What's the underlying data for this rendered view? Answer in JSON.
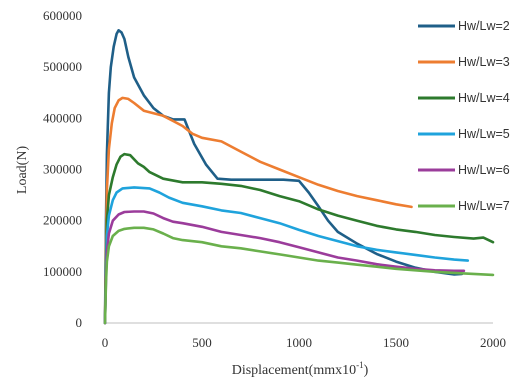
{
  "chart_data": {
    "type": "line",
    "xlabel": "Displacement(mmx10",
    "xlabel_sup": "-1",
    "xlabel_end": ")",
    "ylabel": "Load(N)",
    "xlim": [
      0,
      2000
    ],
    "ylim": [
      0,
      600000
    ],
    "x_ticks": [
      0,
      500,
      1000,
      1500,
      2000
    ],
    "y_ticks": [
      0,
      100000,
      200000,
      300000,
      400000,
      500000,
      600000
    ],
    "grid": false,
    "legend_position": "right",
    "series": [
      {
        "name": "Hw/Lw=2",
        "color": "#1f5f88",
        "points": [
          [
            0,
            0
          ],
          [
            5,
            200000
          ],
          [
            10,
            330000
          ],
          [
            20,
            450000
          ],
          [
            30,
            500000
          ],
          [
            45,
            540000
          ],
          [
            60,
            565000
          ],
          [
            70,
            572000
          ],
          [
            85,
            568000
          ],
          [
            100,
            555000
          ],
          [
            120,
            520000
          ],
          [
            150,
            480000
          ],
          [
            200,
            445000
          ],
          [
            250,
            420000
          ],
          [
            300,
            405000
          ],
          [
            350,
            398000
          ],
          [
            410,
            398000
          ],
          [
            460,
            350000
          ],
          [
            520,
            310000
          ],
          [
            580,
            282000
          ],
          [
            650,
            280000
          ],
          [
            800,
            280000
          ],
          [
            920,
            280000
          ],
          [
            1000,
            278000
          ],
          [
            1050,
            255000
          ],
          [
            1100,
            228000
          ],
          [
            1150,
            200000
          ],
          [
            1200,
            178000
          ],
          [
            1300,
            155000
          ],
          [
            1400,
            135000
          ],
          [
            1500,
            120000
          ],
          [
            1600,
            108000
          ],
          [
            1700,
            100000
          ],
          [
            1800,
            95000
          ],
          [
            1840,
            96000
          ]
        ]
      },
      {
        "name": "Hw/Lw=3",
        "color": "#ed7d31",
        "points": [
          [
            0,
            0
          ],
          [
            5,
            150000
          ],
          [
            10,
            260000
          ],
          [
            20,
            340000
          ],
          [
            35,
            390000
          ],
          [
            50,
            420000
          ],
          [
            70,
            435000
          ],
          [
            90,
            440000
          ],
          [
            120,
            438000
          ],
          [
            150,
            430000
          ],
          [
            200,
            415000
          ],
          [
            250,
            410000
          ],
          [
            300,
            405000
          ],
          [
            350,
            395000
          ],
          [
            400,
            385000
          ],
          [
            450,
            370000
          ],
          [
            500,
            362000
          ],
          [
            600,
            355000
          ],
          [
            700,
            335000
          ],
          [
            800,
            315000
          ],
          [
            900,
            300000
          ],
          [
            1000,
            285000
          ],
          [
            1100,
            270000
          ],
          [
            1200,
            258000
          ],
          [
            1300,
            248000
          ],
          [
            1400,
            240000
          ],
          [
            1500,
            232000
          ],
          [
            1580,
            227000
          ]
        ]
      },
      {
        "name": "Hw/Lw=4",
        "color": "#2d7a2d",
        "points": [
          [
            0,
            0
          ],
          [
            5,
            120000
          ],
          [
            10,
            200000
          ],
          [
            20,
            250000
          ],
          [
            40,
            285000
          ],
          [
            60,
            310000
          ],
          [
            80,
            325000
          ],
          [
            100,
            330000
          ],
          [
            130,
            328000
          ],
          [
            170,
            312000
          ],
          [
            200,
            305000
          ],
          [
            230,
            295000
          ],
          [
            300,
            282000
          ],
          [
            400,
            275000
          ],
          [
            500,
            275000
          ],
          [
            600,
            272000
          ],
          [
            700,
            268000
          ],
          [
            800,
            260000
          ],
          [
            900,
            248000
          ],
          [
            1000,
            238000
          ],
          [
            1100,
            222000
          ],
          [
            1200,
            210000
          ],
          [
            1300,
            200000
          ],
          [
            1400,
            190000
          ],
          [
            1500,
            183000
          ],
          [
            1600,
            178000
          ],
          [
            1700,
            172000
          ],
          [
            1800,
            168000
          ],
          [
            1900,
            165000
          ],
          [
            1950,
            167000
          ],
          [
            2000,
            158000
          ]
        ]
      },
      {
        "name": "Hw/Lw=5",
        "color": "#1fa3dc",
        "points": [
          [
            0,
            0
          ],
          [
            5,
            100000
          ],
          [
            10,
            170000
          ],
          [
            20,
            210000
          ],
          [
            40,
            240000
          ],
          [
            60,
            255000
          ],
          [
            90,
            263000
          ],
          [
            150,
            265000
          ],
          [
            230,
            263000
          ],
          [
            280,
            255000
          ],
          [
            330,
            245000
          ],
          [
            400,
            235000
          ],
          [
            500,
            228000
          ],
          [
            600,
            220000
          ],
          [
            700,
            215000
          ],
          [
            800,
            205000
          ],
          [
            900,
            195000
          ],
          [
            1000,
            182000
          ],
          [
            1100,
            170000
          ],
          [
            1200,
            160000
          ],
          [
            1300,
            150000
          ],
          [
            1400,
            143000
          ],
          [
            1500,
            138000
          ],
          [
            1600,
            133000
          ],
          [
            1700,
            128000
          ],
          [
            1800,
            124000
          ],
          [
            1870,
            122000
          ]
        ]
      },
      {
        "name": "Hw/Lw=6",
        "color": "#9b3c9b",
        "points": [
          [
            0,
            0
          ],
          [
            5,
            90000
          ],
          [
            10,
            140000
          ],
          [
            20,
            175000
          ],
          [
            40,
            200000
          ],
          [
            70,
            212000
          ],
          [
            100,
            217000
          ],
          [
            150,
            218000
          ],
          [
            200,
            218000
          ],
          [
            250,
            214000
          ],
          [
            300,
            205000
          ],
          [
            350,
            198000
          ],
          [
            400,
            195000
          ],
          [
            500,
            188000
          ],
          [
            600,
            178000
          ],
          [
            700,
            172000
          ],
          [
            800,
            166000
          ],
          [
            900,
            158000
          ],
          [
            1000,
            148000
          ],
          [
            1100,
            138000
          ],
          [
            1200,
            128000
          ],
          [
            1300,
            122000
          ],
          [
            1400,
            115000
          ],
          [
            1500,
            110000
          ],
          [
            1600,
            106000
          ],
          [
            1700,
            103000
          ],
          [
            1800,
            102000
          ],
          [
            1850,
            102000
          ]
        ]
      },
      {
        "name": "Hw/Lw=7",
        "color": "#6ab04c",
        "points": [
          [
            0,
            0
          ],
          [
            5,
            80000
          ],
          [
            10,
            120000
          ],
          [
            20,
            150000
          ],
          [
            40,
            170000
          ],
          [
            70,
            180000
          ],
          [
            100,
            184000
          ],
          [
            150,
            186000
          ],
          [
            200,
            186000
          ],
          [
            250,
            183000
          ],
          [
            300,
            175000
          ],
          [
            350,
            166000
          ],
          [
            400,
            162000
          ],
          [
            500,
            158000
          ],
          [
            600,
            150000
          ],
          [
            700,
            146000
          ],
          [
            800,
            140000
          ],
          [
            900,
            134000
          ],
          [
            1000,
            128000
          ],
          [
            1100,
            122000
          ],
          [
            1200,
            118000
          ],
          [
            1300,
            114000
          ],
          [
            1400,
            110000
          ],
          [
            1500,
            106000
          ],
          [
            1600,
            103000
          ],
          [
            1700,
            100000
          ],
          [
            1800,
            98000
          ],
          [
            1900,
            96000
          ],
          [
            2000,
            94000
          ]
        ]
      }
    ]
  }
}
